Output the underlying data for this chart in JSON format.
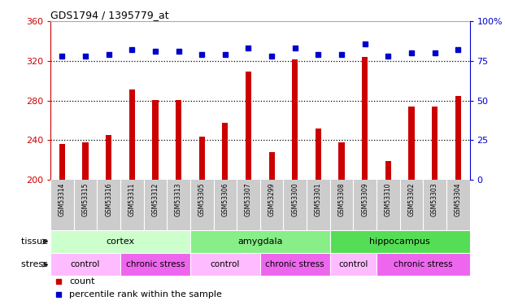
{
  "title": "GDS1794 / 1395779_at",
  "samples": [
    "GSM53314",
    "GSM53315",
    "GSM53316",
    "GSM53311",
    "GSM53312",
    "GSM53313",
    "GSM53305",
    "GSM53306",
    "GSM53307",
    "GSM53299",
    "GSM53300",
    "GSM53301",
    "GSM53308",
    "GSM53309",
    "GSM53310",
    "GSM53302",
    "GSM53303",
    "GSM53304"
  ],
  "counts": [
    236,
    238,
    245,
    291,
    281,
    281,
    244,
    258,
    309,
    228,
    322,
    252,
    238,
    324,
    219,
    274,
    274,
    285
  ],
  "percentiles": [
    78,
    78,
    79,
    82,
    81,
    81,
    79,
    79,
    83,
    78,
    83,
    79,
    79,
    86,
    78,
    80,
    80,
    82
  ],
  "ylim_left": [
    200,
    360
  ],
  "ylim_right": [
    0,
    100
  ],
  "yticks_left": [
    200,
    240,
    280,
    320,
    360
  ],
  "yticks_right": [
    0,
    25,
    50,
    75,
    100
  ],
  "bar_color": "#cc0000",
  "dot_color": "#0000cc",
  "dotted_line_color": "#000000",
  "tissue_groups": [
    {
      "label": "cortex",
      "start": 0,
      "end": 5,
      "color": "#ccffcc"
    },
    {
      "label": "amygdala",
      "start": 6,
      "end": 11,
      "color": "#88ee88"
    },
    {
      "label": "hippocampus",
      "start": 12,
      "end": 17,
      "color": "#55dd55"
    }
  ],
  "stress_groups": [
    {
      "label": "control",
      "start": 0,
      "end": 2,
      "color": "#ffbbff"
    },
    {
      "label": "chronic stress",
      "start": 3,
      "end": 5,
      "color": "#ee66ee"
    },
    {
      "label": "control",
      "start": 6,
      "end": 8,
      "color": "#ffbbff"
    },
    {
      "label": "chronic stress",
      "start": 9,
      "end": 11,
      "color": "#ee66ee"
    },
    {
      "label": "control",
      "start": 12,
      "end": 13,
      "color": "#ffbbff"
    },
    {
      "label": "chronic stress",
      "start": 14,
      "end": 17,
      "color": "#ee66ee"
    }
  ],
  "sample_cell_color": "#cccccc",
  "legend_count_label": "count",
  "legend_percentile_label": "percentile rank within the sample",
  "tissue_label": "tissue",
  "stress_label": "stress",
  "left_axis_color": "#cc0000",
  "right_axis_color": "#0000cc",
  "bar_width": 0.25,
  "dot_size": 5
}
